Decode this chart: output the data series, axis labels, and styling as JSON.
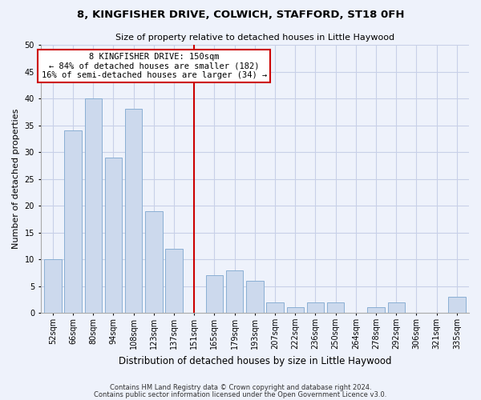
{
  "title": "8, KINGFISHER DRIVE, COLWICH, STAFFORD, ST18 0FH",
  "subtitle": "Size of property relative to detached houses in Little Haywood",
  "xlabel": "Distribution of detached houses by size in Little Haywood",
  "ylabel": "Number of detached properties",
  "bar_labels": [
    "52sqm",
    "66sqm",
    "80sqm",
    "94sqm",
    "108sqm",
    "123sqm",
    "137sqm",
    "151sqm",
    "165sqm",
    "179sqm",
    "193sqm",
    "207sqm",
    "222sqm",
    "236sqm",
    "250sqm",
    "264sqm",
    "278sqm",
    "292sqm",
    "306sqm",
    "321sqm",
    "335sqm"
  ],
  "bar_values": [
    10,
    34,
    40,
    29,
    38,
    19,
    12,
    0,
    7,
    8,
    6,
    2,
    1,
    2,
    2,
    0,
    1,
    2,
    0,
    0,
    3
  ],
  "bar_color": "#ccd9ed",
  "bar_edge_color": "#8aafd4",
  "vline_x_index": 7,
  "vline_color": "#cc0000",
  "annotation_title": "8 KINGFISHER DRIVE: 150sqm",
  "annotation_line1": "← 84% of detached houses are smaller (182)",
  "annotation_line2": "16% of semi-detached houses are larger (34) →",
  "annotation_box_color": "#ffffff",
  "annotation_box_edge": "#cc0000",
  "ylim": [
    0,
    50
  ],
  "yticks": [
    0,
    5,
    10,
    15,
    20,
    25,
    30,
    35,
    40,
    45,
    50
  ],
  "footnote1": "Contains HM Land Registry data © Crown copyright and database right 2024.",
  "footnote2": "Contains public sector information licensed under the Open Government Licence v3.0.",
  "bg_color": "#eef2fb",
  "grid_color": "#c8d0e8",
  "title_fontsize": 9.5,
  "subtitle_fontsize": 8,
  "ylabel_fontsize": 8,
  "xlabel_fontsize": 8.5,
  "tick_fontsize": 7,
  "footnote_fontsize": 6,
  "annotation_fontsize": 7.5
}
